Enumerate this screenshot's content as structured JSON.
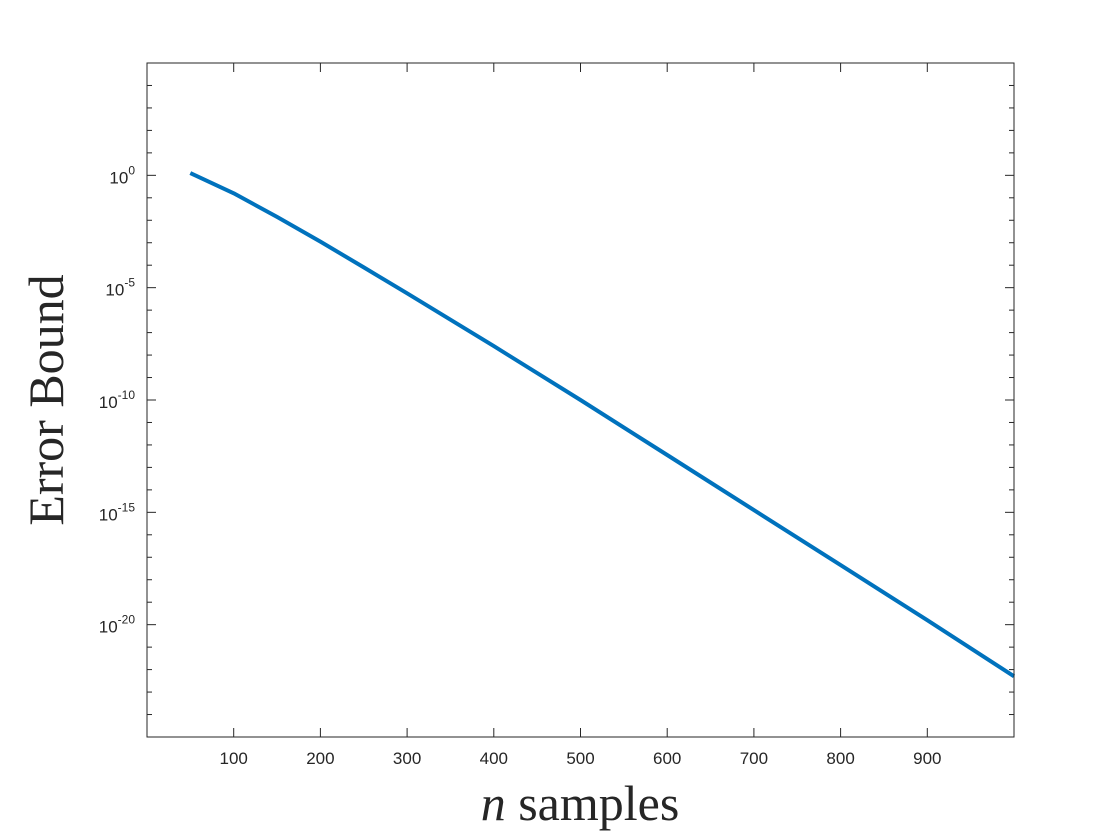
{
  "chart_data": {
    "type": "line",
    "title": "",
    "xlabel_var": "n",
    "xlabel_text": " samples",
    "ylabel": "Error Bound",
    "xlim": [
      0,
      1000
    ],
    "ylim_exponent": [
      -25,
      5
    ],
    "yscale": "log",
    "grid": false,
    "x_ticks": [
      100,
      200,
      300,
      400,
      500,
      600,
      700,
      800,
      900
    ],
    "x_tick_labels": [
      "100",
      "200",
      "300",
      "400",
      "500",
      "600",
      "700",
      "800",
      "900"
    ],
    "y_tick_exponents": [
      0,
      -5,
      -10,
      -15,
      -20
    ],
    "y_tick_base": "10",
    "y_tick_exps": [
      "0",
      "-5",
      "-10",
      "-15",
      "-20"
    ],
    "series": [
      {
        "color": "#0072BD",
        "x": [
          50,
          100,
          150,
          200,
          250,
          300,
          400,
          500,
          600,
          700,
          800,
          900,
          1000
        ],
        "log10_y": [
          0.1,
          -0.8,
          -1.85,
          -2.95,
          -4.1,
          -5.25,
          -7.6,
          -10.0,
          -12.45,
          -14.9,
          -17.35,
          -19.8,
          -22.3
        ]
      }
    ]
  }
}
